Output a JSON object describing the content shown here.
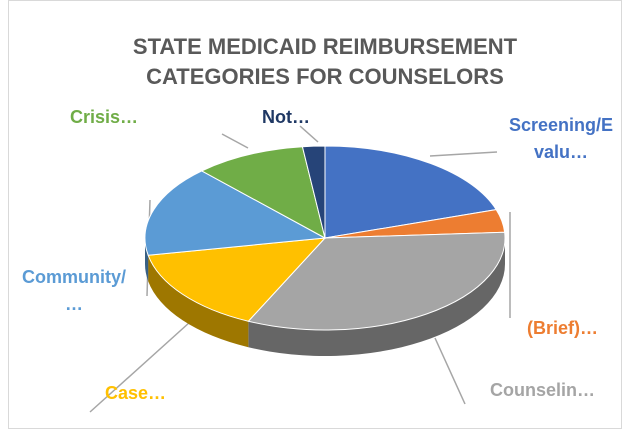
{
  "chart_data": {
    "type": "pie",
    "title": "STATE MEDICAID REIMBURSEMENT CATEGORIES FOR COUNSELORS",
    "categories": [
      "Screening/Evalu…",
      "(Brief)…",
      "Counselin…",
      "Case…",
      "Community/…",
      "Crisis…",
      "Not…"
    ],
    "values": [
      20,
      4,
      33,
      15,
      16,
      10,
      2
    ],
    "colors": [
      "#4472c4",
      "#ed7d31",
      "#a5a5a5",
      "#ffc000",
      "#5b9bd5",
      "#70ad47",
      "#264478"
    ]
  }
}
